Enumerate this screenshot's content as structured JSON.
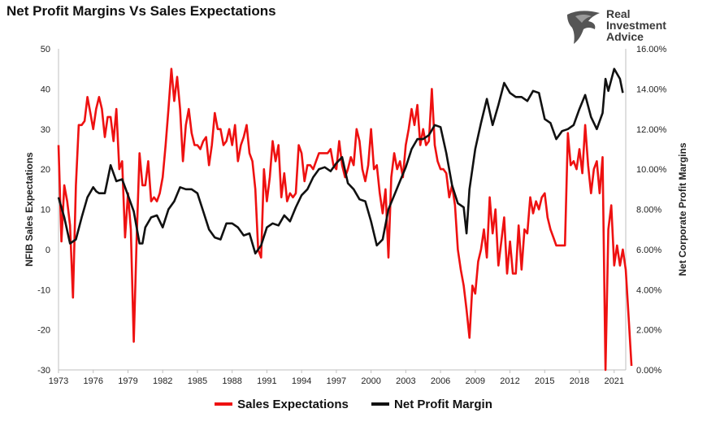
{
  "logo": {
    "line1": "Real",
    "line2": "Investment",
    "line3": "Advice",
    "icon": "eagle-head-icon"
  },
  "colors": {
    "sales": "#ee1111",
    "margin": "#111111",
    "axis": "#bfbfbf"
  },
  "chart_data": {
    "type": "line",
    "title": "Net Profit Margins Vs Sales Expectations",
    "xlabel": "",
    "ylabel_left": "NFIB Sales Expectations",
    "ylabel_right": "Net Corporate Profit Margins",
    "xlim": [
      1973,
      2022
    ],
    "ylim_left": [
      -30,
      50
    ],
    "ylim_right": [
      0,
      16
    ],
    "x_ticks": [
      "1973",
      "1976",
      "1979",
      "1982",
      "1985",
      "1988",
      "1991",
      "1994",
      "1997",
      "2000",
      "2003",
      "2006",
      "2009",
      "2012",
      "2015",
      "2018",
      "2021"
    ],
    "y_left_ticks": [
      "50",
      "40",
      "30",
      "20",
      "10",
      "0",
      "-10",
      "-20",
      "-30"
    ],
    "y_right_ticks": [
      "16.00%",
      "14.00%",
      "12.00%",
      "10.00%",
      "8.00%",
      "6.00%",
      "4.00%",
      "2.00%",
      "0.00%"
    ],
    "grid": false,
    "legend_position": "bottom",
    "series": [
      {
        "name": "Sales Expectations",
        "axis": "left",
        "color": "#ee1111",
        "points": [
          [
            1973.0,
            26
          ],
          [
            1973.25,
            2
          ],
          [
            1973.5,
            16
          ],
          [
            1973.75,
            12
          ],
          [
            1974.0,
            6
          ],
          [
            1974.25,
            -12
          ],
          [
            1974.5,
            16
          ],
          [
            1974.75,
            31
          ],
          [
            1975.0,
            31
          ],
          [
            1975.25,
            32
          ],
          [
            1975.5,
            38
          ],
          [
            1975.75,
            34
          ],
          [
            1976.0,
            30
          ],
          [
            1976.25,
            35
          ],
          [
            1976.5,
            38
          ],
          [
            1976.75,
            35
          ],
          [
            1977.0,
            28
          ],
          [
            1977.25,
            33
          ],
          [
            1977.5,
            33
          ],
          [
            1977.75,
            27
          ],
          [
            1978.0,
            35
          ],
          [
            1978.25,
            20
          ],
          [
            1978.5,
            22
          ],
          [
            1978.75,
            3
          ],
          [
            1979.0,
            14
          ],
          [
            1979.25,
            5
          ],
          [
            1979.5,
            -23
          ],
          [
            1979.75,
            3
          ],
          [
            1980.0,
            24
          ],
          [
            1980.25,
            16
          ],
          [
            1980.5,
            16
          ],
          [
            1980.75,
            22
          ],
          [
            1981.0,
            12
          ],
          [
            1981.25,
            13
          ],
          [
            1981.5,
            12
          ],
          [
            1981.75,
            14
          ],
          [
            1982.0,
            18
          ],
          [
            1982.25,
            26
          ],
          [
            1982.5,
            35
          ],
          [
            1982.75,
            45
          ],
          [
            1983.0,
            37
          ],
          [
            1983.25,
            43
          ],
          [
            1983.5,
            35
          ],
          [
            1983.75,
            22
          ],
          [
            1984.0,
            31
          ],
          [
            1984.25,
            35
          ],
          [
            1984.5,
            29
          ],
          [
            1984.75,
            26
          ],
          [
            1985.0,
            26
          ],
          [
            1985.25,
            25
          ],
          [
            1985.5,
            27
          ],
          [
            1985.75,
            28
          ],
          [
            1986.0,
            21
          ],
          [
            1986.25,
            26
          ],
          [
            1986.5,
            34
          ],
          [
            1986.75,
            30
          ],
          [
            1987.0,
            30
          ],
          [
            1987.25,
            26
          ],
          [
            1987.5,
            27
          ],
          [
            1987.75,
            30
          ],
          [
            1988.0,
            26
          ],
          [
            1988.25,
            31
          ],
          [
            1988.5,
            22
          ],
          [
            1988.75,
            26
          ],
          [
            1989.0,
            28
          ],
          [
            1989.25,
            31
          ],
          [
            1989.5,
            24
          ],
          [
            1989.75,
            22
          ],
          [
            1990.0,
            15
          ],
          [
            1990.25,
            0
          ],
          [
            1990.5,
            -2
          ],
          [
            1990.75,
            20
          ],
          [
            1991.0,
            12
          ],
          [
            1991.25,
            18
          ],
          [
            1991.5,
            27
          ],
          [
            1991.75,
            22
          ],
          [
            1992.0,
            26
          ],
          [
            1992.25,
            13
          ],
          [
            1992.5,
            19
          ],
          [
            1992.75,
            12
          ],
          [
            1993.0,
            14
          ],
          [
            1993.25,
            13
          ],
          [
            1993.5,
            14
          ],
          [
            1993.75,
            26
          ],
          [
            1994.0,
            24
          ],
          [
            1994.25,
            17
          ],
          [
            1994.5,
            21
          ],
          [
            1994.75,
            21
          ],
          [
            1995.0,
            20
          ],
          [
            1995.25,
            22
          ],
          [
            1995.5,
            24
          ],
          [
            1995.75,
            24
          ],
          [
            1996.0,
            24
          ],
          [
            1996.25,
            24
          ],
          [
            1996.5,
            25
          ],
          [
            1996.75,
            21
          ],
          [
            1997.0,
            20
          ],
          [
            1997.25,
            27
          ],
          [
            1997.5,
            21
          ],
          [
            1997.75,
            18
          ],
          [
            1998.0,
            20
          ],
          [
            1998.25,
            23
          ],
          [
            1998.5,
            21
          ],
          [
            1998.75,
            30
          ],
          [
            1999.0,
            27
          ],
          [
            1999.25,
            20
          ],
          [
            1999.5,
            17
          ],
          [
            1999.75,
            21
          ],
          [
            2000.0,
            30
          ],
          [
            2000.25,
            20
          ],
          [
            2000.5,
            21
          ],
          [
            2000.75,
            14
          ],
          [
            2001.0,
            9
          ],
          [
            2001.25,
            15
          ],
          [
            2001.5,
            -2
          ],
          [
            2001.75,
            18
          ],
          [
            2002.0,
            24
          ],
          [
            2002.25,
            20
          ],
          [
            2002.5,
            22
          ],
          [
            2002.75,
            18
          ],
          [
            2003.0,
            26
          ],
          [
            2003.25,
            30
          ],
          [
            2003.5,
            35
          ],
          [
            2003.75,
            31
          ],
          [
            2004.0,
            36
          ],
          [
            2004.25,
            26
          ],
          [
            2004.5,
            30
          ],
          [
            2004.75,
            26
          ],
          [
            2005.0,
            27
          ],
          [
            2005.25,
            40
          ],
          [
            2005.5,
            26
          ],
          [
            2005.75,
            22
          ],
          [
            2006.0,
            20
          ],
          [
            2006.25,
            20
          ],
          [
            2006.5,
            19
          ],
          [
            2006.75,
            13
          ],
          [
            2007.0,
            16
          ],
          [
            2007.25,
            11
          ],
          [
            2007.5,
            0
          ],
          [
            2007.75,
            -5
          ],
          [
            2008.0,
            -9
          ],
          [
            2008.25,
            -15
          ],
          [
            2008.5,
            -22
          ],
          [
            2008.75,
            -9
          ],
          [
            2009.0,
            -11
          ],
          [
            2009.25,
            -3
          ],
          [
            2009.5,
            0
          ],
          [
            2009.75,
            5
          ],
          [
            2010.0,
            -2
          ],
          [
            2010.25,
            13
          ],
          [
            2010.5,
            4
          ],
          [
            2010.75,
            10
          ],
          [
            2011.0,
            -4
          ],
          [
            2011.25,
            2
          ],
          [
            2011.5,
            8
          ],
          [
            2011.75,
            -6
          ],
          [
            2012.0,
            2
          ],
          [
            2012.25,
            -6
          ],
          [
            2012.5,
            -6
          ],
          [
            2012.75,
            6
          ],
          [
            2013.0,
            -5
          ],
          [
            2013.25,
            5
          ],
          [
            2013.5,
            4
          ],
          [
            2013.75,
            13
          ],
          [
            2014.0,
            9
          ],
          [
            2014.25,
            12
          ],
          [
            2014.5,
            10
          ],
          [
            2014.75,
            13
          ],
          [
            2015.0,
            14
          ],
          [
            2015.25,
            8
          ],
          [
            2015.5,
            5
          ],
          [
            2015.75,
            3
          ],
          [
            2016.0,
            1
          ],
          [
            2016.25,
            1
          ],
          [
            2016.5,
            1
          ],
          [
            2016.75,
            1
          ],
          [
            2017.0,
            29
          ],
          [
            2017.25,
            21
          ],
          [
            2017.5,
            22
          ],
          [
            2017.75,
            20
          ],
          [
            2018.0,
            25
          ],
          [
            2018.25,
            19
          ],
          [
            2018.5,
            31
          ],
          [
            2018.75,
            21
          ],
          [
            2019.0,
            14
          ],
          [
            2019.25,
            20
          ],
          [
            2019.5,
            22
          ],
          [
            2019.75,
            14
          ],
          [
            2020.0,
            23
          ],
          [
            2020.25,
            -30
          ],
          [
            2020.5,
            5
          ],
          [
            2020.75,
            11
          ],
          [
            2021.0,
            -4
          ],
          [
            2021.25,
            1
          ],
          [
            2021.5,
            -4
          ],
          [
            2021.75,
            0
          ],
          [
            2022.0,
            -5
          ],
          [
            2022.25,
            -17
          ],
          [
            2022.5,
            -29
          ]
        ]
      },
      {
        "name": "Net Profit Margin",
        "axis": "right",
        "color": "#111111",
        "points": [
          [
            1973.0,
            8.6
          ],
          [
            1973.5,
            7.6
          ],
          [
            1974.0,
            6.3
          ],
          [
            1974.5,
            6.5
          ],
          [
            1975.0,
            7.6
          ],
          [
            1975.5,
            8.6
          ],
          [
            1976.0,
            9.1
          ],
          [
            1976.25,
            8.9
          ],
          [
            1976.5,
            8.8
          ],
          [
            1977.0,
            8.8
          ],
          [
            1977.5,
            10.2
          ],
          [
            1978.0,
            9.4
          ],
          [
            1978.5,
            9.5
          ],
          [
            1979.0,
            8.7
          ],
          [
            1979.5,
            7.9
          ],
          [
            1980.0,
            6.3
          ],
          [
            1980.25,
            6.3
          ],
          [
            1980.5,
            7.1
          ],
          [
            1981.0,
            7.6
          ],
          [
            1981.5,
            7.7
          ],
          [
            1982.0,
            7.1
          ],
          [
            1982.5,
            8.0
          ],
          [
            1983.0,
            8.4
          ],
          [
            1983.5,
            9.1
          ],
          [
            1984.0,
            9.0
          ],
          [
            1984.5,
            9.0
          ],
          [
            1985.0,
            8.8
          ],
          [
            1985.5,
            7.9
          ],
          [
            1986.0,
            7.0
          ],
          [
            1986.5,
            6.6
          ],
          [
            1987.0,
            6.5
          ],
          [
            1987.5,
            7.3
          ],
          [
            1988.0,
            7.3
          ],
          [
            1988.5,
            7.1
          ],
          [
            1989.0,
            6.7
          ],
          [
            1989.5,
            6.8
          ],
          [
            1990.0,
            5.8
          ],
          [
            1990.5,
            6.2
          ],
          [
            1991.0,
            7.1
          ],
          [
            1991.5,
            7.3
          ],
          [
            1992.0,
            7.2
          ],
          [
            1992.5,
            7.7
          ],
          [
            1993.0,
            7.4
          ],
          [
            1993.5,
            8.1
          ],
          [
            1994.0,
            8.7
          ],
          [
            1994.5,
            9.0
          ],
          [
            1995.0,
            9.6
          ],
          [
            1995.5,
            10.0
          ],
          [
            1996.0,
            10.1
          ],
          [
            1996.5,
            9.9
          ],
          [
            1997.0,
            10.3
          ],
          [
            1997.5,
            10.6
          ],
          [
            1998.0,
            9.3
          ],
          [
            1998.5,
            9.0
          ],
          [
            1999.0,
            8.5
          ],
          [
            1999.5,
            8.4
          ],
          [
            2000.0,
            7.4
          ],
          [
            2000.5,
            6.2
          ],
          [
            2001.0,
            6.5
          ],
          [
            2001.5,
            8.0
          ],
          [
            2002.0,
            8.7
          ],
          [
            2002.5,
            9.4
          ],
          [
            2003.0,
            10.1
          ],
          [
            2003.5,
            11.0
          ],
          [
            2004.0,
            11.5
          ],
          [
            2004.5,
            11.5
          ],
          [
            2005.0,
            11.7
          ],
          [
            2005.5,
            12.2
          ],
          [
            2006.0,
            12.1
          ],
          [
            2006.5,
            10.8
          ],
          [
            2007.0,
            9.2
          ],
          [
            2007.5,
            8.3
          ],
          [
            2008.0,
            8.1
          ],
          [
            2008.25,
            6.8
          ],
          [
            2008.5,
            9.0
          ],
          [
            2009.0,
            11.0
          ],
          [
            2009.5,
            12.3
          ],
          [
            2010.0,
            13.5
          ],
          [
            2010.5,
            12.2
          ],
          [
            2011.0,
            13.2
          ],
          [
            2011.5,
            14.3
          ],
          [
            2012.0,
            13.8
          ],
          [
            2012.5,
            13.6
          ],
          [
            2013.0,
            13.6
          ],
          [
            2013.5,
            13.4
          ],
          [
            2014.0,
            13.9
          ],
          [
            2014.5,
            13.8
          ],
          [
            2015.0,
            12.5
          ],
          [
            2015.5,
            12.3
          ],
          [
            2016.0,
            11.5
          ],
          [
            2016.5,
            11.9
          ],
          [
            2017.0,
            12.0
          ],
          [
            2017.5,
            12.2
          ],
          [
            2018.0,
            13.0
          ],
          [
            2018.5,
            13.7
          ],
          [
            2019.0,
            12.6
          ],
          [
            2019.5,
            12.0
          ],
          [
            2020.0,
            12.8
          ],
          [
            2020.25,
            14.5
          ],
          [
            2020.5,
            13.9
          ],
          [
            2021.0,
            15.0
          ],
          [
            2021.5,
            14.5
          ],
          [
            2021.75,
            13.8
          ]
        ]
      }
    ]
  }
}
